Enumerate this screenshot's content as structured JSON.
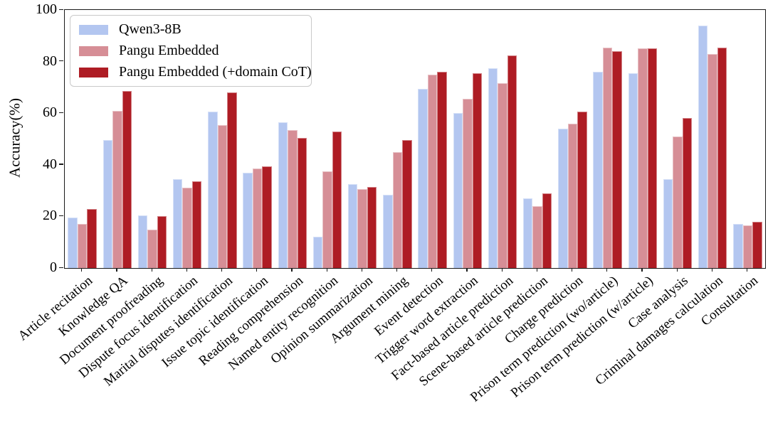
{
  "chart_data": {
    "type": "bar",
    "title": "",
    "xlabel": "",
    "ylabel": "Accuracy(%)",
    "ylim": [
      0,
      100
    ],
    "yticks": [
      0,
      20,
      40,
      60,
      80,
      100
    ],
    "grid": false,
    "legend_position": "upper-left",
    "categories": [
      "Article recitation",
      "Knowledge QA",
      "Document proofreading",
      "Dispute focus identification",
      "Marital disputes identification",
      "Issue topic identification",
      "Reading comprehension",
      "Named entity recognition",
      "Opinion summarization",
      "Argument mining",
      "Event detection",
      "Trigger word extraction",
      "Fact-based article prediction",
      "Scene-based article prediction",
      "Charge prediction",
      "Prison term prediction (wo/article)",
      "Prison term prediction (w/article)",
      "Case analysis",
      "Criminal damages calculation",
      "Consultation"
    ],
    "series": [
      {
        "name": "Qwen3-8B",
        "color": "#b3c6f0",
        "values": [
          19.5,
          49.5,
          20.5,
          34.5,
          60.5,
          37,
          56.5,
          12,
          32.5,
          28.5,
          69.5,
          60,
          77.5,
          27,
          54,
          76,
          75.5,
          34.5,
          94,
          17
        ]
      },
      {
        "name": "Pangu Embedded",
        "color": "#d68e96",
        "values": [
          17,
          61,
          15,
          31,
          55.5,
          38.5,
          53.5,
          37.5,
          30.5,
          45,
          75,
          65.5,
          71.5,
          24,
          56,
          85.5,
          85,
          51,
          83,
          16.5
        ]
      },
      {
        "name": "Pangu Embedded (+domain CoT)",
        "color": "#ae1c24",
        "values": [
          23,
          68.5,
          20,
          33.5,
          68,
          39.5,
          50.5,
          53,
          31.5,
          49.5,
          76,
          75.5,
          82.5,
          29,
          60.5,
          84,
          85,
          58,
          85.5,
          18
        ]
      }
    ]
  }
}
